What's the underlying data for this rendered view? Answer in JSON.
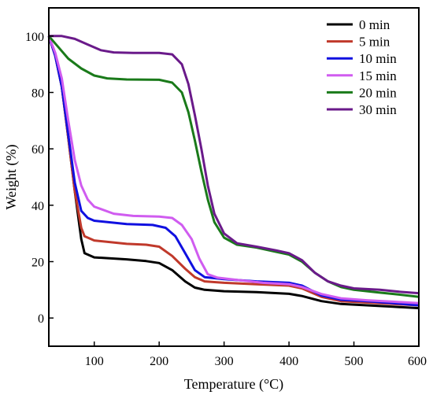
{
  "chart_data": {
    "type": "line",
    "title": "",
    "xlabel": "Temperature (°C)",
    "ylabel": "Weight (%)",
    "xlim": [
      30,
      600
    ],
    "ylim": [
      -10,
      110
    ],
    "xticks": [
      100,
      200,
      300,
      400,
      500,
      600
    ],
    "yticks": [
      0,
      20,
      40,
      60,
      80,
      100
    ],
    "grid": false,
    "legend_position": "top-right",
    "series": [
      {
        "name": "0 min",
        "color": "#000000",
        "points": [
          [
            30,
            100
          ],
          [
            40,
            93
          ],
          [
            50,
            82
          ],
          [
            60,
            64
          ],
          [
            70,
            45
          ],
          [
            80,
            28
          ],
          [
            85,
            23
          ],
          [
            100,
            21.5
          ],
          [
            150,
            20.8
          ],
          [
            180,
            20.2
          ],
          [
            200,
            19.5
          ],
          [
            220,
            17
          ],
          [
            240,
            13
          ],
          [
            255,
            10.8
          ],
          [
            270,
            10
          ],
          [
            300,
            9.5
          ],
          [
            350,
            9.2
          ],
          [
            400,
            8.6
          ],
          [
            420,
            7.8
          ],
          [
            450,
            6
          ],
          [
            480,
            5
          ],
          [
            520,
            4.5
          ],
          [
            560,
            4
          ],
          [
            600,
            3.5
          ]
        ]
      },
      {
        "name": "5 min",
        "color": "#c0392b",
        "points": [
          [
            30,
            100
          ],
          [
            40,
            93
          ],
          [
            50,
            82
          ],
          [
            60,
            64
          ],
          [
            70,
            45
          ],
          [
            80,
            32
          ],
          [
            85,
            29
          ],
          [
            100,
            27.5
          ],
          [
            150,
            26.3
          ],
          [
            180,
            26
          ],
          [
            200,
            25.3
          ],
          [
            220,
            22
          ],
          [
            240,
            17.5
          ],
          [
            255,
            14.5
          ],
          [
            270,
            13
          ],
          [
            300,
            12.5
          ],
          [
            350,
            12
          ],
          [
            400,
            11.5
          ],
          [
            420,
            10.5
          ],
          [
            450,
            7.5
          ],
          [
            480,
            6
          ],
          [
            520,
            5.5
          ],
          [
            560,
            5
          ],
          [
            600,
            4.5
          ]
        ]
      },
      {
        "name": "10 min",
        "color": "#1010e0",
        "points": [
          [
            30,
            100
          ],
          [
            40,
            93
          ],
          [
            50,
            82
          ],
          [
            60,
            65
          ],
          [
            70,
            48
          ],
          [
            80,
            38
          ],
          [
            90,
            35.5
          ],
          [
            100,
            34.5
          ],
          [
            150,
            33.3
          ],
          [
            190,
            33
          ],
          [
            210,
            32
          ],
          [
            225,
            29
          ],
          [
            240,
            23
          ],
          [
            255,
            17
          ],
          [
            270,
            14.5
          ],
          [
            300,
            13.8
          ],
          [
            350,
            13
          ],
          [
            400,
            12.5
          ],
          [
            420,
            11.5
          ],
          [
            450,
            8
          ],
          [
            480,
            6.5
          ],
          [
            520,
            6
          ],
          [
            560,
            5.3
          ],
          [
            600,
            4.5
          ]
        ]
      },
      {
        "name": "15 min",
        "color": "#d05cf0",
        "points": [
          [
            30,
            100
          ],
          [
            40,
            94
          ],
          [
            50,
            85
          ],
          [
            60,
            70
          ],
          [
            70,
            56
          ],
          [
            80,
            47
          ],
          [
            90,
            42
          ],
          [
            100,
            39.5
          ],
          [
            130,
            37
          ],
          [
            160,
            36.2
          ],
          [
            200,
            36
          ],
          [
            220,
            35.5
          ],
          [
            235,
            33
          ],
          [
            250,
            28
          ],
          [
            262,
            21
          ],
          [
            275,
            15.5
          ],
          [
            290,
            14.3
          ],
          [
            320,
            13.5
          ],
          [
            360,
            12.5
          ],
          [
            400,
            12
          ],
          [
            420,
            11
          ],
          [
            450,
            8.5
          ],
          [
            480,
            7
          ],
          [
            520,
            6.3
          ],
          [
            560,
            5.8
          ],
          [
            600,
            5.3
          ]
        ]
      },
      {
        "name": "20 min",
        "color": "#1a7a1a",
        "points": [
          [
            30,
            100
          ],
          [
            45,
            96
          ],
          [
            60,
            92
          ],
          [
            80,
            88.5
          ],
          [
            100,
            86
          ],
          [
            120,
            85
          ],
          [
            150,
            84.6
          ],
          [
            200,
            84.5
          ],
          [
            220,
            83.5
          ],
          [
            235,
            80
          ],
          [
            245,
            73
          ],
          [
            255,
            63
          ],
          [
            265,
            52
          ],
          [
            275,
            42
          ],
          [
            285,
            34
          ],
          [
            300,
            28.5
          ],
          [
            320,
            26
          ],
          [
            350,
            25
          ],
          [
            380,
            23.5
          ],
          [
            400,
            22.5
          ],
          [
            420,
            20
          ],
          [
            440,
            16
          ],
          [
            460,
            13
          ],
          [
            480,
            11
          ],
          [
            500,
            10
          ],
          [
            540,
            9
          ],
          [
            570,
            8.3
          ],
          [
            600,
            7.5
          ]
        ]
      },
      {
        "name": "30 min",
        "color": "#6a1a8a",
        "points": [
          [
            30,
            100
          ],
          [
            50,
            100
          ],
          [
            70,
            99
          ],
          [
            90,
            97
          ],
          [
            110,
            95
          ],
          [
            130,
            94.2
          ],
          [
            160,
            94
          ],
          [
            200,
            94
          ],
          [
            220,
            93.5
          ],
          [
            235,
            90
          ],
          [
            245,
            83
          ],
          [
            255,
            72
          ],
          [
            265,
            60
          ],
          [
            275,
            47
          ],
          [
            285,
            37
          ],
          [
            300,
            30
          ],
          [
            320,
            26.5
          ],
          [
            350,
            25.3
          ],
          [
            380,
            24
          ],
          [
            400,
            23
          ],
          [
            420,
            20.5
          ],
          [
            440,
            16
          ],
          [
            460,
            13
          ],
          [
            480,
            11.5
          ],
          [
            500,
            10.5
          ],
          [
            540,
            10
          ],
          [
            570,
            9.3
          ],
          [
            600,
            8.8
          ]
        ]
      }
    ]
  }
}
